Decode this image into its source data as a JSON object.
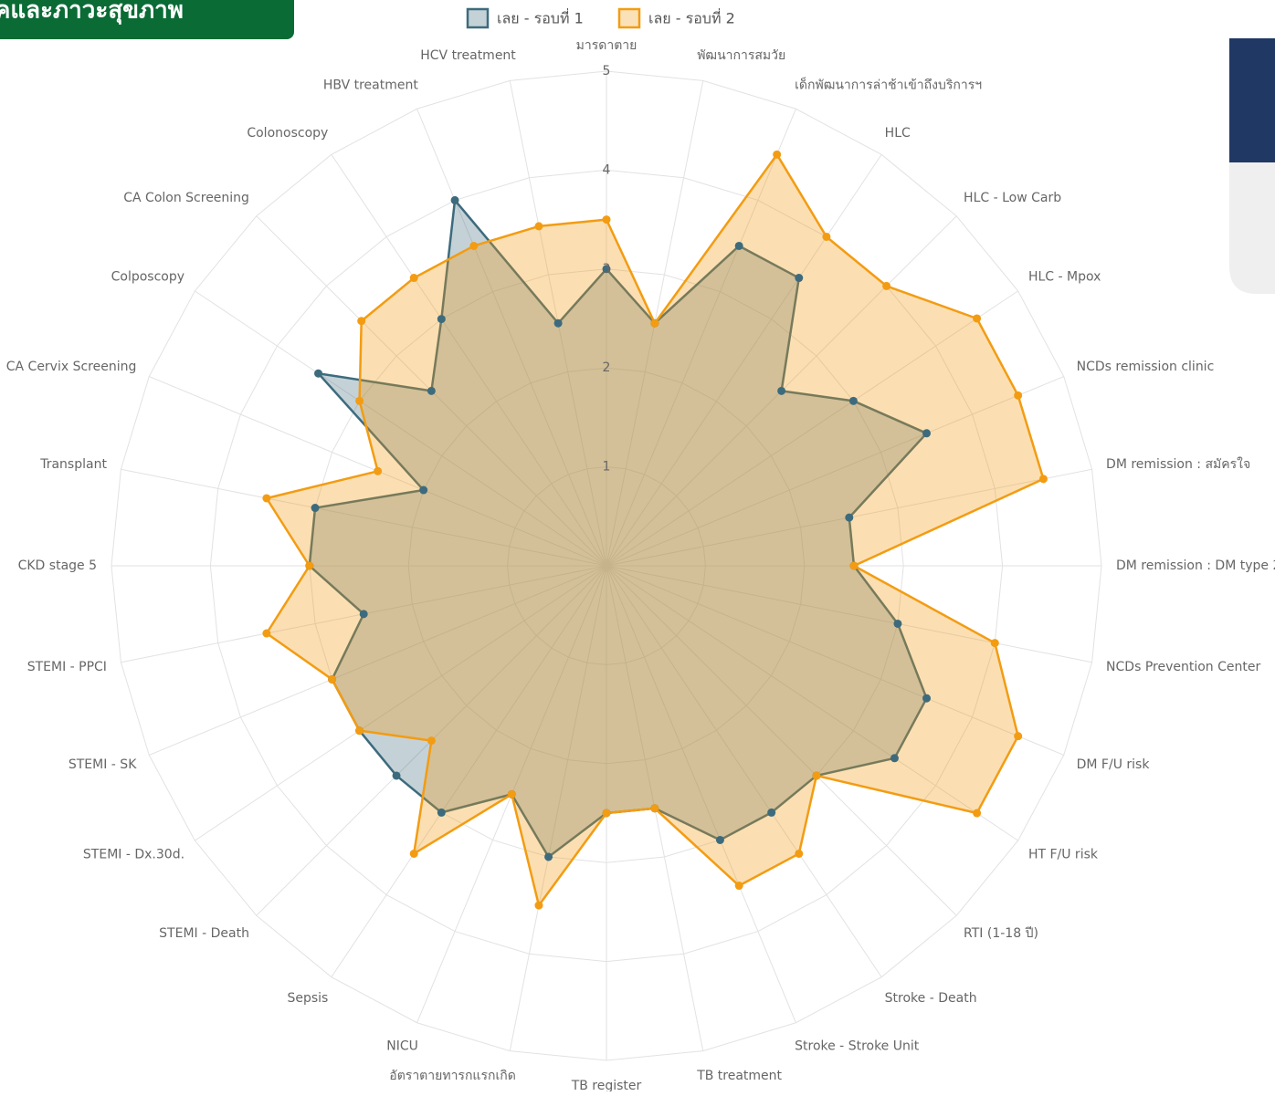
{
  "header": {
    "title": "คและภาวะสุขภาพ"
  },
  "chart_data": {
    "type": "radar",
    "categories": [
      "มารดาตาย",
      "พัฒนาการสมวัย",
      "เด็กพัฒนาการล่าช้าเข้าถึงบริการฯ",
      "HLC",
      "HLC - Low Carb",
      "HLC -  Mpox",
      "NCDs remission clinic",
      "DM remission : สมัครใจ",
      "DM remission : DM type 2",
      "NCDs Prevention Center",
      "DM F/U risk",
      "HT F/U risk",
      "RTI (1-18 ปี)",
      "Stroke - Death",
      "Stroke - Stroke Unit",
      "TB treatment",
      "TB register",
      "อัตราตายทารกแรกเกิด",
      "NICU",
      "Sepsis",
      "STEMI - Death",
      "STEMI - Dx.30d.",
      "STEMI - SK",
      "STEMI - PPCI",
      "CKD stage 5",
      "Transplant",
      "CA Cervix Screening",
      "Colposcopy",
      "CA Colon Screening",
      "Colonoscopy",
      "HBV treatment",
      "HCV treatment"
    ],
    "series": [
      {
        "name": "เลย - รอบที่ 1",
        "color": "#3d6b7d",
        "values": [
          3,
          2.5,
          3.5,
          3.5,
          2.5,
          3,
          3.5,
          2.5,
          2.5,
          3,
          3.5,
          3.5,
          3,
          3,
          3,
          2.5,
          2.5,
          3,
          2.5,
          3,
          3,
          3,
          3,
          2.5,
          3,
          3,
          2,
          3.5,
          2.5,
          3,
          4,
          2.5
        ]
      },
      {
        "name": "เลย - รอบที่ 2",
        "color": "#f39c12",
        "values": [
          3.5,
          2.5,
          4.5,
          4,
          4,
          4.5,
          4.5,
          4.5,
          2.5,
          4,
          4.5,
          4.5,
          3,
          3.5,
          3.5,
          2.5,
          2.5,
          3.5,
          2.5,
          3.5,
          2.5,
          3,
          3,
          3.5,
          3,
          3.5,
          2.5,
          3,
          3.5,
          3.5,
          3.5,
          3.5
        ]
      }
    ],
    "ylim": [
      0,
      5
    ],
    "yticks": [
      0,
      1,
      2,
      3,
      4,
      5
    ],
    "grid": true
  }
}
